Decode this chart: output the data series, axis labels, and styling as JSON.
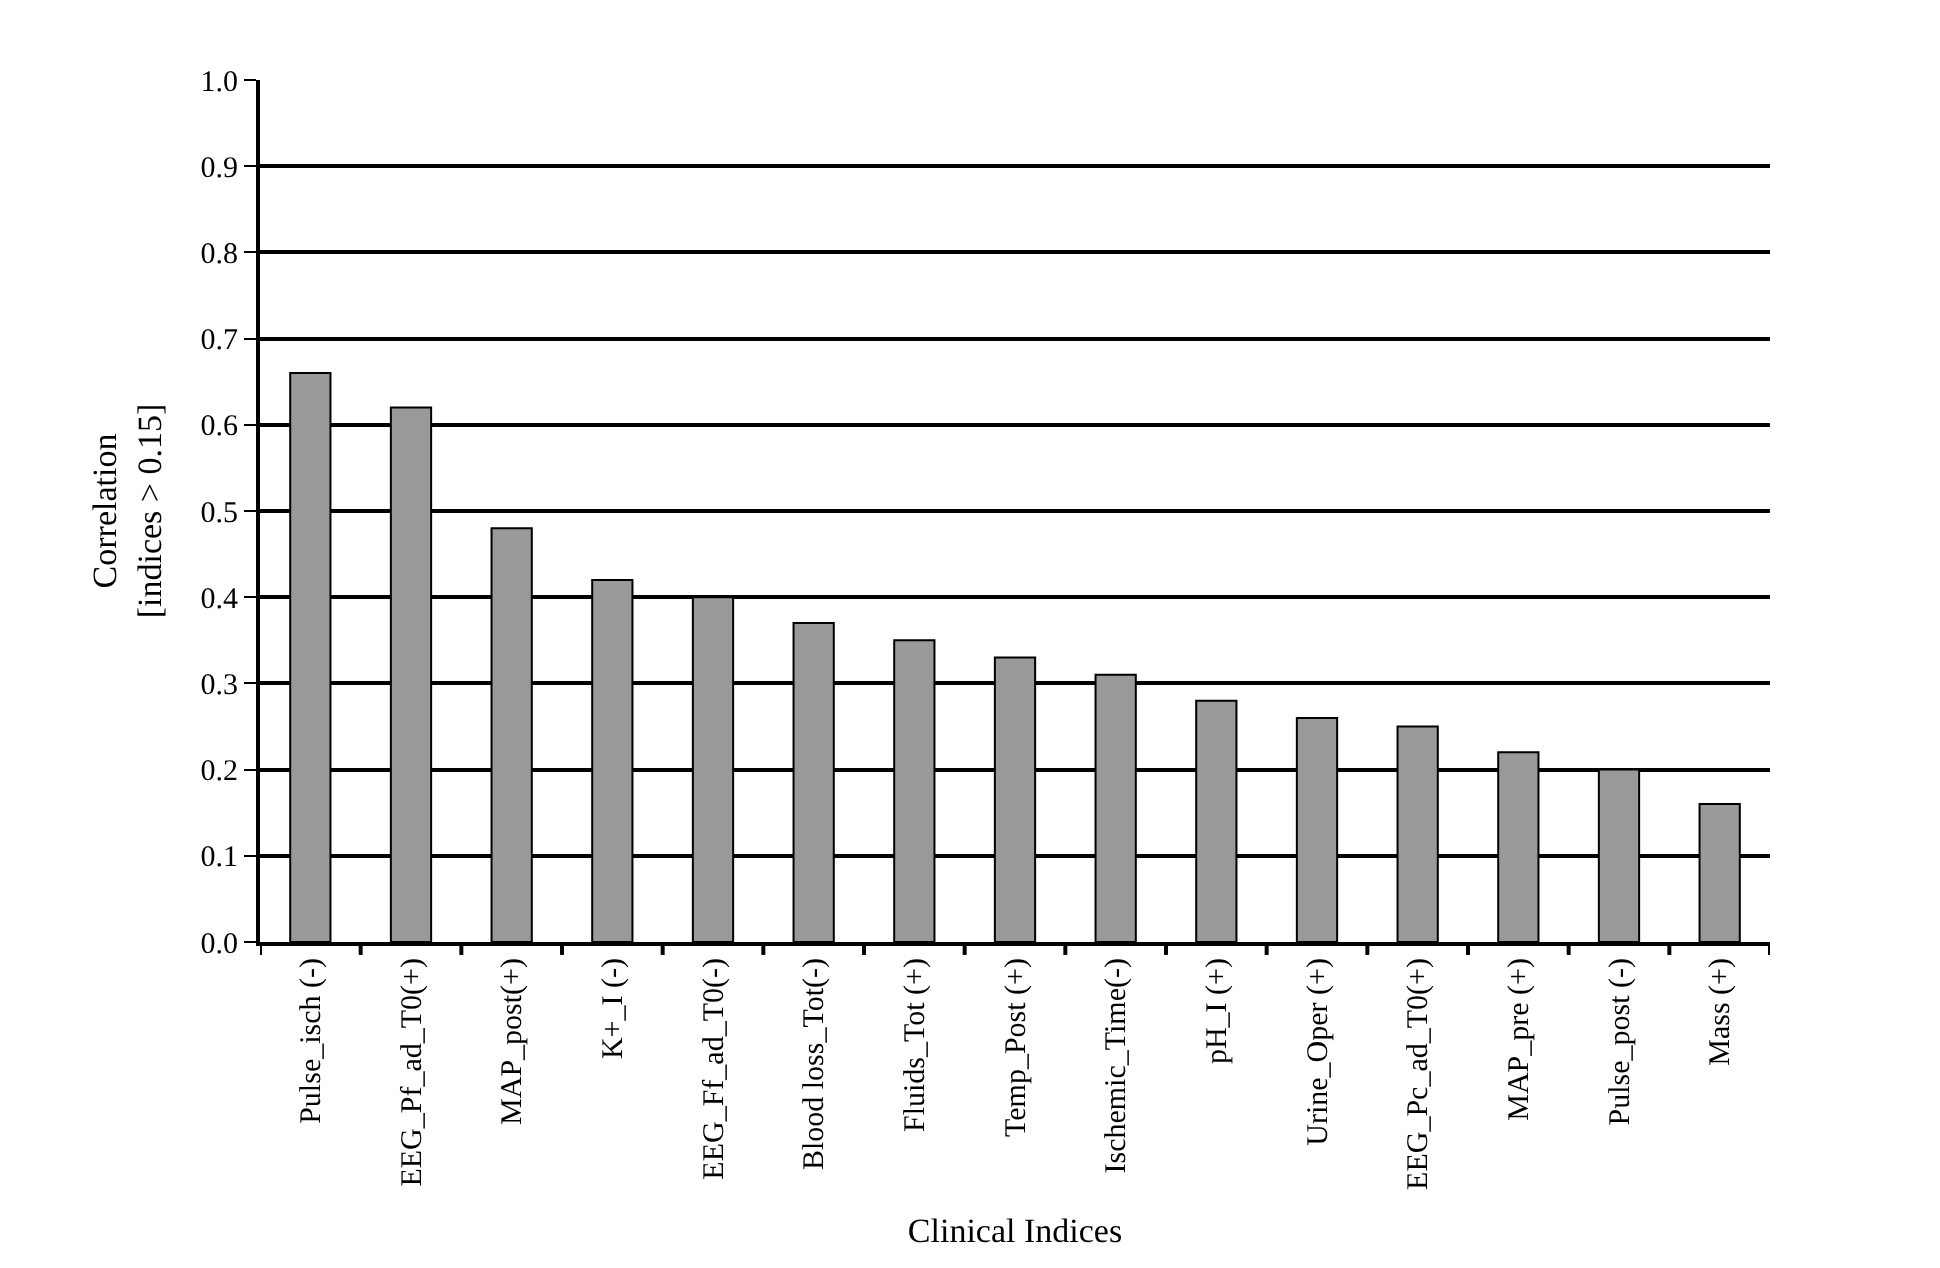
{
  "chart_data": {
    "type": "bar",
    "xlabel": "Clinical Indices",
    "ylabel": "Correlation\n[indices > 0.15]",
    "categories": [
      "Pulse_isch (-)",
      "EEG_Pf_ad_T0(+)",
      "MAP_post(+)",
      "K+_I (-)",
      "EEG_Ff_ad_T0(-)",
      "Blood loss_Tot(-)",
      "Fluids_Tot (+)",
      "Temp_Post (+)",
      "Ischemic_Time(-)",
      "pH_I (+)",
      "Urine_Oper (+)",
      "EEG_Pc_ad_T0(+)",
      "MAP_pre (+)",
      "Pulse_post (-)",
      "Mass (+)"
    ],
    "values": [
      0.66,
      0.62,
      0.48,
      0.42,
      0.4,
      0.37,
      0.35,
      0.33,
      0.31,
      0.28,
      0.26,
      0.25,
      0.22,
      0.2,
      0.16
    ],
    "color": "#999999",
    "ylim": [
      0,
      1
    ],
    "yticks": [
      {
        "value": 0,
        "label": "0.0"
      },
      {
        "value": 0.1,
        "label": "0.1"
      },
      {
        "value": 0.2,
        "label": "0.2"
      },
      {
        "value": 0.3,
        "label": "0.3"
      },
      {
        "value": 0.4,
        "label": "0.4"
      },
      {
        "value": 0.5,
        "label": "0.5"
      },
      {
        "value": 0.6,
        "label": "0.6"
      },
      {
        "value": 0.7,
        "label": "0.7"
      },
      {
        "value": 0.8,
        "label": "0.8"
      },
      {
        "value": 0.9,
        "label": "0.9"
      },
      {
        "value": 1,
        "label": "1.0"
      }
    ],
    "grid": "y"
  }
}
